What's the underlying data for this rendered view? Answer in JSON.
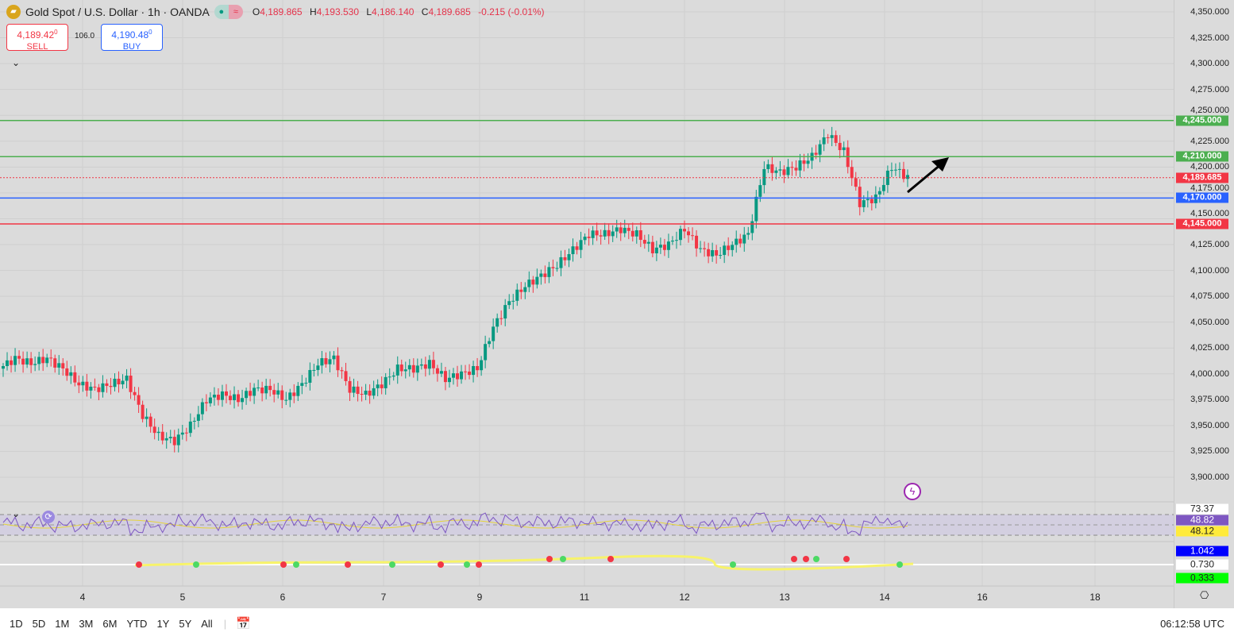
{
  "header": {
    "symbol": "Gold Spot / U.S. Dollar · 1h · OANDA",
    "logo_icon": "gold-bars-icon",
    "o_label": "O",
    "o": "4,189.865",
    "h_label": "H",
    "h": "4,193.530",
    "l_label": "L",
    "l": "4,186.140",
    "c_label": "C",
    "c": "4,189.685",
    "change": "-0.215 (-0.01%)"
  },
  "trade": {
    "sell_price": "4,189.42",
    "sell_sup": "0",
    "sell_label": "SELL",
    "spread": "106.0",
    "buy_price": "4,190.48",
    "buy_sup": "0",
    "buy_label": "BUY"
  },
  "price_axis": {
    "ticks": [
      "4,350.000",
      "4,325.000",
      "4,300.000",
      "4,275.000",
      "4,250.000",
      "4,225.000",
      "4,200.000",
      "4,175.000",
      "4,150.000",
      "4,125.000",
      "4,100.000",
      "4,075.000",
      "4,050.000",
      "4,025.000",
      "4,000.000",
      "3,975.000",
      "3,950.000",
      "3,925.000",
      "3,900.000"
    ]
  },
  "levels": [
    {
      "price": 4245,
      "label": "4,245.000",
      "color": "#4caf50",
      "style": "solid"
    },
    {
      "price": 4210,
      "label": "4,210.000",
      "color": "#4caf50",
      "style": "solid"
    },
    {
      "price": 4189.685,
      "label": "4,189.685",
      "color": "#f23645",
      "style": "dotted"
    },
    {
      "price": 4170,
      "label": "4,170.000",
      "color": "#2962ff",
      "style": "solid"
    },
    {
      "price": 4145,
      "label": "4,145.000",
      "color": "#f23645",
      "style": "solid"
    }
  ],
  "rsi": {
    "upper": "73.37",
    "value": "48.82",
    "signal": "48.12",
    "value_color": "#7e57c2",
    "signal_color": "#ffeb3b"
  },
  "osc": {
    "top": "1.042",
    "mid": "0.730",
    "bottom": "0.333",
    "top_color": "#0000ff",
    "bottom_color": "#00ff00"
  },
  "x_axis": {
    "labels": [
      "4",
      "5",
      "6",
      "7",
      "9",
      "11",
      "12",
      "13",
      "14",
      "16",
      "18"
    ]
  },
  "toolbar": {
    "ranges": [
      "1D",
      "5D",
      "1M",
      "3M",
      "6M",
      "YTD",
      "1Y",
      "5Y",
      "All"
    ],
    "time": "06:12:58 UTC"
  },
  "chart_data": {
    "type": "candlestick",
    "title": "Gold Spot / U.S. Dollar · 1h · OANDA",
    "x_tick_labels": [
      "4",
      "5",
      "6",
      "7",
      "9",
      "11",
      "12",
      "13",
      "14",
      "16",
      "18"
    ],
    "ylim": [
      3890,
      4355
    ],
    "grid": true,
    "up_color": "#089981",
    "down_color": "#f23645",
    "approx_closes_4h": [
      4005,
      4015,
      4010,
      4015,
      4005,
      3990,
      3985,
      3990,
      3995,
      3960,
      3940,
      3935,
      3950,
      3975,
      3980,
      3975,
      3985,
      3985,
      3975,
      3990,
      4010,
      4015,
      3985,
      3980,
      3990,
      4005,
      4005,
      4010,
      3995,
      4000,
      4005,
      4045,
      4070,
      4085,
      4095,
      4105,
      4120,
      4135,
      4135,
      4140,
      4135,
      4120,
      4125,
      4140,
      4120,
      4115,
      4125,
      4135,
      4200,
      4195,
      4200,
      4210,
      4232,
      4215,
      4165,
      4170,
      4200,
      4190
    ]
  }
}
